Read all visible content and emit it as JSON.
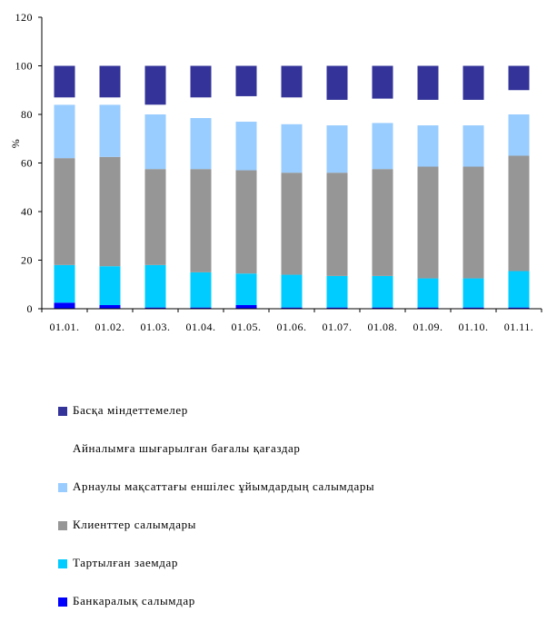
{
  "chart_data": {
    "type": "bar",
    "stacked": true,
    "ylabel": "%",
    "ylim": [
      0,
      120
    ],
    "yticks": [
      0,
      20,
      40,
      60,
      80,
      100,
      120
    ],
    "grid": false,
    "legend_position": "bottom",
    "categories": [
      "01.01.",
      "01.02.",
      "01.03.",
      "01.04.",
      "01.05.",
      "01.06.",
      "01.07.",
      "01.08.",
      "01.09.",
      "01.10.",
      "01.11."
    ],
    "series": [
      {
        "name": "Банкаралық салымдар",
        "color": "#0000ff",
        "values": [
          2.5,
          1.5,
          0.5,
          0.5,
          1.5,
          0.5,
          0.5,
          0.5,
          0.5,
          0.5,
          0.5
        ]
      },
      {
        "name": "Тартылған заемдар",
        "color": "#00ccff",
        "values": [
          15.5,
          16.0,
          17.5,
          14.5,
          13.0,
          13.5,
          13.0,
          13.0,
          12.0,
          12.0,
          15.0
        ]
      },
      {
        "name": "Клиенттер салымдары",
        "color": "#969696",
        "values": [
          44.0,
          45.0,
          39.5,
          42.5,
          42.5,
          42.0,
          42.5,
          44.0,
          46.0,
          46.0,
          47.5
        ]
      },
      {
        "name": "Арнаулы мақсаттағы еншілес ұйымдардың салымдары",
        "color": "#99ccff",
        "values": [
          22.0,
          21.5,
          22.5,
          21.0,
          20.0,
          20.0,
          19.5,
          19.0,
          17.0,
          17.0,
          17.0
        ]
      },
      {
        "name": "Айналымға шығарылған бағалы қағаздар",
        "color": "#ffffff",
        "values": [
          3.0,
          3.0,
          4.0,
          8.5,
          10.5,
          11.0,
          10.5,
          10.0,
          10.5,
          10.5,
          10.0
        ]
      },
      {
        "name": "Басқа міндеттемелер",
        "color": "#333399",
        "values": [
          13.0,
          13.0,
          16.0,
          13.0,
          12.5,
          13.0,
          14.0,
          13.5,
          14.0,
          14.0,
          10.0
        ]
      }
    ],
    "legend_order": [
      5,
      4,
      3,
      2,
      1,
      0
    ]
  }
}
